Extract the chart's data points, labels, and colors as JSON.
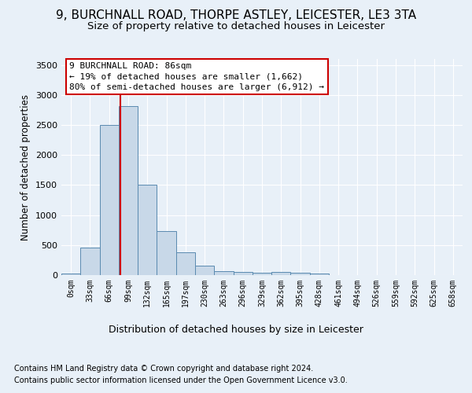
{
  "title1": "9, BURCHNALL ROAD, THORPE ASTLEY, LEICESTER, LE3 3TA",
  "title2": "Size of property relative to detached houses in Leicester",
  "xlabel": "Distribution of detached houses by size in Leicester",
  "ylabel": "Number of detached properties",
  "footnote1": "Contains HM Land Registry data © Crown copyright and database right 2024.",
  "footnote2": "Contains public sector information licensed under the Open Government Licence v3.0.",
  "bar_labels": [
    "0sqm",
    "33sqm",
    "66sqm",
    "99sqm",
    "132sqm",
    "165sqm",
    "197sqm",
    "230sqm",
    "263sqm",
    "296sqm",
    "329sqm",
    "362sqm",
    "395sqm",
    "428sqm",
    "461sqm",
    "494sqm",
    "526sqm",
    "559sqm",
    "592sqm",
    "625sqm",
    "658sqm"
  ],
  "bar_values": [
    20,
    460,
    2500,
    2820,
    1500,
    730,
    385,
    155,
    70,
    55,
    40,
    50,
    35,
    25,
    0,
    0,
    0,
    0,
    0,
    0,
    0
  ],
  "bar_color": "#c8d8e8",
  "bar_edge_color": "#5a8ab0",
  "property_line_x": 2.6,
  "property_line_color": "#cc0000",
  "annotation_text": "9 BURCHNALL ROAD: 86sqm\n← 19% of detached houses are smaller (1,662)\n80% of semi-detached houses are larger (6,912) →",
  "annotation_box_color": "#ffffff",
  "annotation_box_edge_color": "#cc0000",
  "ylim": [
    0,
    3600
  ],
  "yticks": [
    0,
    500,
    1000,
    1500,
    2000,
    2500,
    3000,
    3500
  ],
  "bg_color": "#e8f0f8",
  "plot_bg_color": "#e8f0f8",
  "grid_color": "#ffffff",
  "title1_fontsize": 11,
  "title2_fontsize": 9.5,
  "xlabel_fontsize": 9,
  "ylabel_fontsize": 8.5,
  "footnote_fontsize": 7,
  "tick_fontsize": 8,
  "annot_fontsize": 8
}
